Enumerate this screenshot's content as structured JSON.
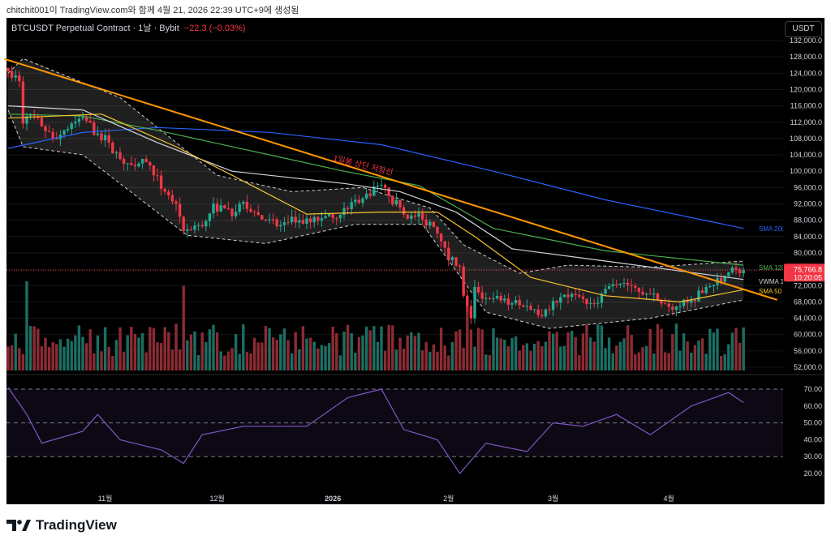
{
  "caption": "chitchit001이 TradingView.com와 함께 4월 21, 2026 22:39 UTC+9에 생성됨",
  "header": {
    "title": "BTCUSDT Perpetual Contract · 1날 · Bybit",
    "change": "−22.3 (−0.03%)",
    "currency": "USDT"
  },
  "logo": "TradingView",
  "colors": {
    "up": "#22ab94",
    "down": "#f23645",
    "sma200": "#2962ff",
    "sma120": "#4caf50",
    "vwma": "#d1d4dc",
    "sma50": "#f7c52b",
    "trend": "#ff9800",
    "rsi": "#7e57c2"
  },
  "chart_data": {
    "type": "candlestick",
    "price_ticks": [
      "132,000.0",
      "128,000.0",
      "124,000.0",
      "120,000.0",
      "116,000.0",
      "112,000.0",
      "108,000.0",
      "104,000.0",
      "100,000.0",
      "96,000.0",
      "92,000.0",
      "88,000.0",
      "84,000.0",
      "80,000.0",
      "72,000.0",
      "68,000.0",
      "64,000.0",
      "60,000.0",
      "56,000.0",
      "52,000.0"
    ],
    "ylim": [
      52000,
      132000
    ],
    "time_labels": [
      {
        "label": "11월",
        "day": 26
      },
      {
        "label": "12월",
        "day": 56
      },
      {
        "label": "2026",
        "day": 87
      },
      {
        "label": "2월",
        "day": 118
      },
      {
        "label": "3월",
        "day": 146
      },
      {
        "label": "4월",
        "day": 177
      }
    ],
    "close_keypoints": [
      [
        0,
        124500
      ],
      [
        3,
        122000
      ],
      [
        4,
        112000
      ],
      [
        6,
        114000
      ],
      [
        9,
        111000
      ],
      [
        12,
        108000
      ],
      [
        15,
        110000
      ],
      [
        20,
        113500
      ],
      [
        23,
        110000
      ],
      [
        27,
        107000
      ],
      [
        30,
        103000
      ],
      [
        33,
        101500
      ],
      [
        36,
        103000
      ],
      [
        39,
        99000
      ],
      [
        42,
        95000
      ],
      [
        45,
        92000
      ],
      [
        47,
        85000
      ],
      [
        49,
        86500
      ],
      [
        52,
        87000
      ],
      [
        55,
        91000
      ],
      [
        58,
        92000
      ],
      [
        60,
        89000
      ],
      [
        63,
        92500
      ],
      [
        66,
        90000
      ],
      [
        69,
        88000
      ],
      [
        72,
        86500
      ],
      [
        75,
        87500
      ],
      [
        78,
        88000
      ],
      [
        81,
        87500
      ],
      [
        84,
        88500
      ],
      [
        87,
        88500
      ],
      [
        90,
        91000
      ],
      [
        93,
        93000
      ],
      [
        96,
        94500
      ],
      [
        99,
        96500
      ],
      [
        101,
        95000
      ],
      [
        104,
        92000
      ],
      [
        107,
        89500
      ],
      [
        110,
        88500
      ],
      [
        113,
        87500
      ],
      [
        116,
        84000
      ],
      [
        118,
        78500
      ],
      [
        121,
        76000
      ],
      [
        122,
        70000
      ],
      [
        124,
        64000
      ],
      [
        125,
        71000
      ],
      [
        128,
        69000
      ],
      [
        131,
        68500
      ],
      [
        134,
        68000
      ],
      [
        137,
        67000
      ],
      [
        140,
        66500
      ],
      [
        143,
        65500
      ],
      [
        146,
        67500
      ],
      [
        149,
        68500
      ],
      [
        152,
        70500
      ],
      [
        155,
        67000
      ],
      [
        158,
        69000
      ],
      [
        161,
        72000
      ],
      [
        164,
        73000
      ],
      [
        167,
        72000
      ],
      [
        170,
        70500
      ],
      [
        173,
        69000
      ],
      [
        176,
        67000
      ],
      [
        179,
        66500
      ],
      [
        182,
        68000
      ],
      [
        185,
        69500
      ],
      [
        188,
        71500
      ],
      [
        191,
        73500
      ],
      [
        194,
        76000
      ],
      [
        197,
        75766.8
      ]
    ],
    "last_price": "75,766.8",
    "countdown": "10:20:05",
    "series": [
      {
        "name": "SMA 200",
        "label": "SMA 200",
        "color": "sma200",
        "points": [
          [
            0,
            105600
          ],
          [
            20,
            109500
          ],
          [
            40,
            110700
          ],
          [
            70,
            109500
          ],
          [
            100,
            106500
          ],
          [
            130,
            100000
          ],
          [
            160,
            93000
          ],
          [
            197,
            86000
          ]
        ]
      },
      {
        "name": "SMA 120",
        "label": "SMA 120",
        "color": "sma120",
        "points": [
          [
            0,
            114000
          ],
          [
            20,
            113500
          ],
          [
            40,
            110000
          ],
          [
            70,
            104000
          ],
          [
            90,
            100000
          ],
          [
            110,
            96500
          ],
          [
            130,
            86000
          ],
          [
            160,
            80500
          ],
          [
            197,
            77000
          ]
        ]
      },
      {
        "name": "VWMA",
        "label": "VWMA 1",
        "color": "vwma",
        "points": [
          [
            0,
            116000
          ],
          [
            20,
            115000
          ],
          [
            40,
            107000
          ],
          [
            60,
            100000
          ],
          [
            90,
            97000
          ],
          [
            105,
            95000
          ],
          [
            120,
            90000
          ],
          [
            135,
            81000
          ],
          [
            160,
            78000
          ],
          [
            197,
            73500
          ]
        ]
      },
      {
        "name": "SMA 50",
        "label": "SMA 50",
        "color": "sma50",
        "points": [
          [
            0,
            113000
          ],
          [
            25,
            114000
          ],
          [
            45,
            106000
          ],
          [
            60,
            99000
          ],
          [
            80,
            89500
          ],
          [
            100,
            90000
          ],
          [
            115,
            90000
          ],
          [
            125,
            84000
          ],
          [
            140,
            74000
          ],
          [
            160,
            69500
          ],
          [
            180,
            68000
          ],
          [
            197,
            71000
          ]
        ]
      }
    ],
    "band_upper": [
      [
        0,
        124000
      ],
      [
        4,
        127600
      ],
      [
        30,
        118000
      ],
      [
        56,
        99000
      ],
      [
        76,
        95000
      ],
      [
        95,
        96000
      ],
      [
        113,
        91000
      ],
      [
        122,
        82000
      ],
      [
        137,
        75000
      ],
      [
        150,
        77000
      ],
      [
        172,
        76500
      ],
      [
        197,
        78000
      ]
    ],
    "band_lower": [
      [
        0,
        115000
      ],
      [
        4,
        106000
      ],
      [
        20,
        104000
      ],
      [
        48,
        84300
      ],
      [
        69,
        82300
      ],
      [
        93,
        87000
      ],
      [
        111,
        87000
      ],
      [
        128,
        65500
      ],
      [
        145,
        61500
      ],
      [
        172,
        64000
      ],
      [
        197,
        68500
      ]
    ],
    "trendline": {
      "label": "1일봉 상단 저항선",
      "from": [
        -1,
        127500
      ],
      "to": [
        206,
        68500
      ]
    },
    "volume_spikes": [
      [
        5,
        1.0
      ],
      [
        47,
        0.95
      ],
      [
        123,
        0.8
      ]
    ],
    "rsi": {
      "ticks": [
        "70.00",
        "60.00",
        "50.00",
        "40.00",
        "30.00",
        "20.00"
      ],
      "levels": [
        70,
        50,
        30
      ],
      "points": [
        [
          0,
          71
        ],
        [
          5,
          55
        ],
        [
          9,
          38
        ],
        [
          20,
          45
        ],
        [
          24,
          55
        ],
        [
          30,
          40
        ],
        [
          41,
          34
        ],
        [
          47,
          26
        ],
        [
          52,
          43
        ],
        [
          63,
          48
        ],
        [
          80,
          48
        ],
        [
          91,
          65
        ],
        [
          100,
          70
        ],
        [
          106,
          46
        ],
        [
          115,
          40
        ],
        [
          121,
          20
        ],
        [
          128,
          38
        ],
        [
          139,
          33
        ],
        [
          146,
          50
        ],
        [
          154,
          48
        ],
        [
          163,
          55
        ],
        [
          172,
          43
        ],
        [
          183,
          60
        ],
        [
          193,
          68
        ],
        [
          197,
          62
        ]
      ]
    }
  }
}
